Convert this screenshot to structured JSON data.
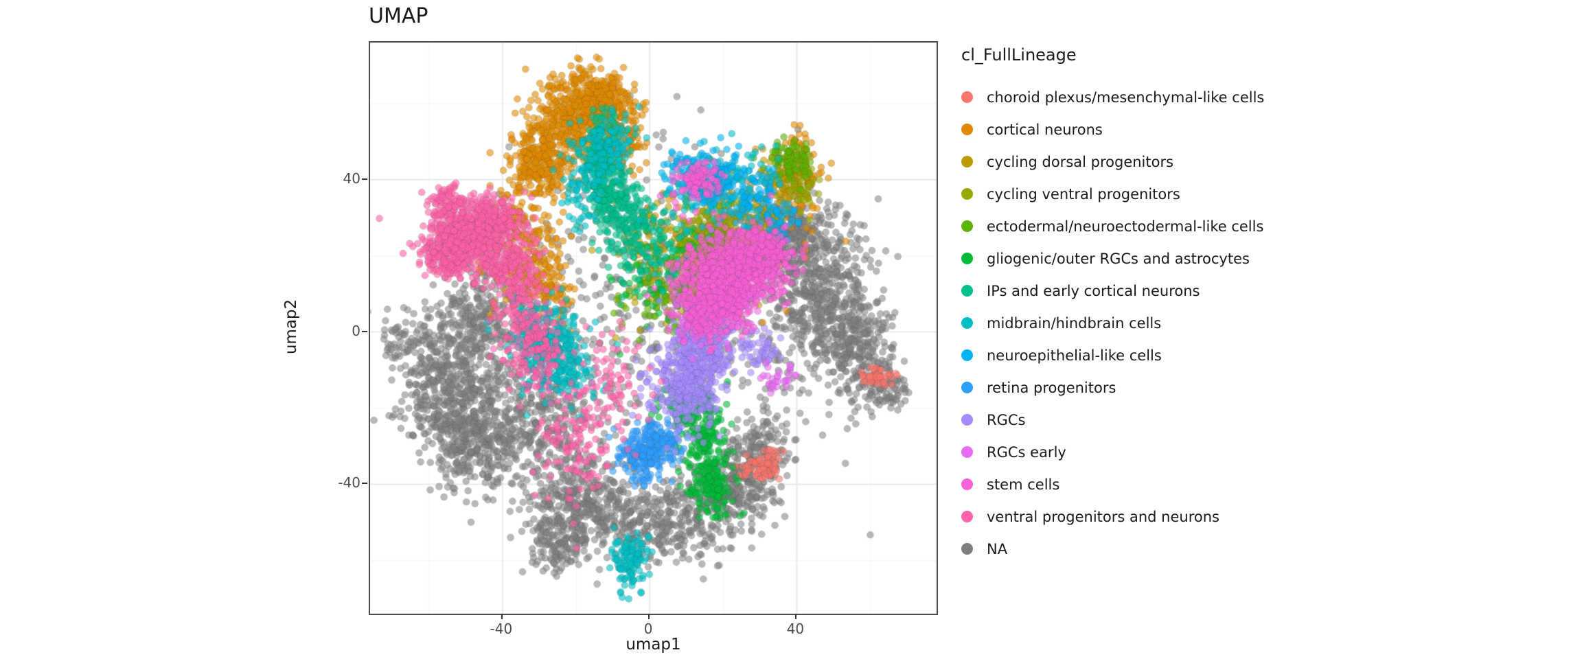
{
  "chart_data": {
    "type": "scatter",
    "title": "UMAP",
    "xlabel": "umap1",
    "ylabel": "umap2",
    "xlim": [
      -76,
      78
    ],
    "ylim": [
      -74,
      76
    ],
    "x_ticks": [
      -40,
      0,
      40
    ],
    "y_ticks": [
      -40,
      0,
      40
    ],
    "minor_ticks": [
      -60,
      -20,
      20,
      60
    ],
    "grid": true,
    "legend_title": "cl_FullLineage",
    "legend_position": "right",
    "point_radius": 5,
    "point_alpha": 0.6,
    "panel_border_color": "#4d4d4d",
    "grid_major_color": "#e8e8e8",
    "grid_minor_color": "#f3f3f3",
    "series": [
      {
        "name": "choroid plexus/mesenchymal-like cells",
        "color": "#F8766D",
        "clusters": [
          [
            30,
            -36,
            2.5,
            1.5,
            60
          ],
          [
            62,
            -12,
            2,
            1.5,
            45
          ],
          [
            33,
            -33,
            1.5,
            1.5,
            25
          ]
        ]
      },
      {
        "name": "cortical neurons",
        "color": "#E18A00",
        "clusters": [
          [
            -22,
            55,
            5,
            6,
            350
          ],
          [
            -14,
            62,
            4,
            4,
            250
          ],
          [
            -30,
            45,
            4,
            5,
            250
          ],
          [
            -8,
            52,
            3,
            6,
            150
          ],
          [
            -35,
            25,
            5,
            8,
            200
          ],
          [
            -28,
            12,
            4,
            6,
            120
          ],
          [
            40,
            42,
            3,
            5,
            120
          ],
          [
            20,
            25,
            10,
            10,
            100
          ]
        ]
      },
      {
        "name": "cycling dorsal progenitors",
        "color": "#BB9D00",
        "clusters": [
          [
            8,
            18,
            8,
            8,
            200
          ],
          [
            25,
            30,
            5,
            4,
            100
          ],
          [
            35,
            38,
            3,
            4,
            80
          ]
        ]
      },
      {
        "name": "cycling ventral progenitors",
        "color": "#97A900",
        "clusters": [
          [
            15,
            22,
            4,
            4,
            180
          ],
          [
            20,
            28,
            3,
            3,
            100
          ],
          [
            42,
            40,
            2,
            4,
            60
          ]
        ]
      },
      {
        "name": "ectodermal/neuroectodermal-like cells",
        "color": "#5CB300",
        "clusters": [
          [
            18,
            20,
            3,
            3,
            100
          ],
          [
            38,
            45,
            3,
            3,
            80
          ],
          [
            5,
            10,
            6,
            6,
            80
          ]
        ]
      },
      {
        "name": "gliogenic/outer RGCs and astrocytes",
        "color": "#00BA38",
        "clusters": [
          [
            15,
            -30,
            3,
            6,
            150
          ],
          [
            17,
            -40,
            3,
            4,
            120
          ],
          [
            10,
            -20,
            4,
            4,
            100
          ],
          [
            5,
            15,
            8,
            8,
            80
          ]
        ]
      },
      {
        "name": "IPs and early cortical neurons",
        "color": "#00C08D",
        "clusters": [
          [
            -13,
            45,
            2.5,
            6,
            200
          ],
          [
            -10,
            35,
            3,
            5,
            150
          ],
          [
            -5,
            28,
            4,
            5,
            120
          ],
          [
            0,
            20,
            5,
            5,
            80
          ]
        ]
      },
      {
        "name": "midbrain/hindbrain cells",
        "color": "#00BFC4",
        "clusters": [
          [
            -25,
            -8,
            5,
            5,
            250
          ],
          [
            -30,
            0,
            4,
            4,
            150
          ],
          [
            -5,
            -60,
            2.5,
            4,
            120
          ],
          [
            -18,
            40,
            3,
            8,
            100
          ],
          [
            -10,
            50,
            3,
            4,
            80
          ],
          [
            15,
            35,
            8,
            6,
            80
          ],
          [
            25,
            40,
            5,
            4,
            60
          ]
        ]
      },
      {
        "name": "neuroepithelial-like cells",
        "color": "#00B2F3",
        "clusters": [
          [
            18,
            40,
            4,
            4,
            120
          ],
          [
            28,
            35,
            4,
            4,
            80
          ],
          [
            10,
            42,
            3,
            3,
            60
          ],
          [
            35,
            30,
            3,
            3,
            40
          ]
        ]
      },
      {
        "name": "retina progenitors",
        "color": "#2E9EFF",
        "clusters": [
          [
            -2,
            -32,
            3.5,
            3.5,
            200
          ],
          [
            3,
            -28,
            2.5,
            2.5,
            80
          ]
        ]
      },
      {
        "name": "RGCs",
        "color": "#A58AFF",
        "clusters": [
          [
            10,
            -13,
            5,
            6,
            350
          ],
          [
            14,
            -5,
            4,
            4,
            150
          ],
          [
            18,
            2,
            5,
            5,
            100
          ],
          [
            30,
            -5,
            3,
            3,
            50
          ]
        ]
      },
      {
        "name": "RGCs early",
        "color": "#E76BF3",
        "clusters": [
          [
            22,
            8,
            4,
            4,
            120
          ],
          [
            12,
            3,
            3,
            3,
            80
          ],
          [
            35,
            -12,
            2,
            2,
            30
          ]
        ]
      },
      {
        "name": "stem cells",
        "color": "#FB61D7",
        "clusters": [
          [
            22,
            15,
            7,
            6,
            600
          ],
          [
            30,
            20,
            5,
            4,
            250
          ],
          [
            15,
            8,
            5,
            5,
            200
          ],
          [
            12,
            40,
            3,
            2.5,
            100
          ]
        ]
      },
      {
        "name": "ventral progenitors and neurons",
        "color": "#FF62A8",
        "clusters": [
          [
            -48,
            25,
            6,
            4,
            400
          ],
          [
            -55,
            20,
            4,
            3,
            200
          ],
          [
            -40,
            18,
            5,
            4,
            200
          ],
          [
            -42,
            30,
            4,
            3,
            150
          ],
          [
            -52,
            30,
            3,
            3,
            100
          ],
          [
            -35,
            5,
            4,
            8,
            150
          ],
          [
            -30,
            -5,
            4,
            5,
            100
          ],
          [
            -20,
            -30,
            5,
            8,
            120
          ],
          [
            -10,
            -15,
            5,
            8,
            80
          ],
          [
            -55,
            35,
            2.5,
            2,
            60
          ]
        ]
      },
      {
        "name": "NA",
        "color": "#7F7F7F",
        "clusters": [
          [
            -55,
            -12,
            7,
            9,
            500
          ],
          [
            -48,
            -28,
            6,
            7,
            350
          ],
          [
            -30,
            -25,
            8,
            8,
            300
          ],
          [
            -18,
            -45,
            7,
            6,
            350
          ],
          [
            -25,
            -55,
            5,
            4,
            150
          ],
          [
            5,
            -50,
            8,
            5,
            300
          ],
          [
            22,
            -42,
            6,
            5,
            250
          ],
          [
            30,
            -30,
            5,
            5,
            150
          ],
          [
            45,
            12,
            8,
            10,
            500
          ],
          [
            52,
            0,
            6,
            6,
            200
          ],
          [
            38,
            25,
            6,
            5,
            250
          ],
          [
            58,
            -8,
            4,
            8,
            150
          ],
          [
            -45,
            5,
            6,
            6,
            200
          ],
          [
            0,
            5,
            25,
            20,
            400
          ],
          [
            65,
            -15,
            3,
            3,
            60
          ],
          [
            -68,
            -2,
            3,
            3,
            50
          ]
        ]
      }
    ]
  }
}
